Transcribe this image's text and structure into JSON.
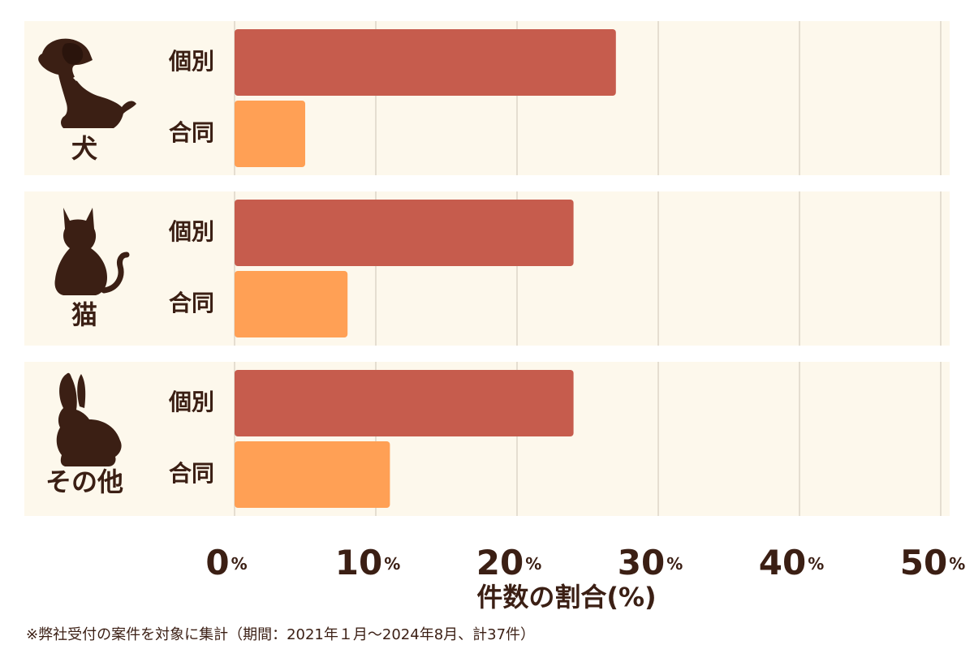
{
  "chart_data": {
    "type": "bar",
    "orientation": "horizontal",
    "categories": [
      "犬",
      "猫",
      "その他"
    ],
    "series": [
      {
        "name": "個別",
        "values": [
          27,
          24,
          24
        ]
      },
      {
        "name": "合同",
        "values": [
          5,
          8,
          11
        ]
      }
    ],
    "xlabel": "件数の割合(%)",
    "xlim": [
      0,
      50
    ],
    "xticks": [
      0,
      10,
      20,
      30,
      40,
      50
    ],
    "tick_suffix": "%",
    "grid": true,
    "group_icons": [
      "dog-icon",
      "cat-icon",
      "rabbit-icon"
    ],
    "colors": {
      "個別": "#c65c4d",
      "合同": "#ffa055",
      "panel": "#fdf8ec",
      "gridline": "#ddd6c8",
      "text": "#3b1f14"
    }
  },
  "footnote": "※弊社受付の案件を対象に集計（期間：2021年１月〜2024年8月、計37件）"
}
